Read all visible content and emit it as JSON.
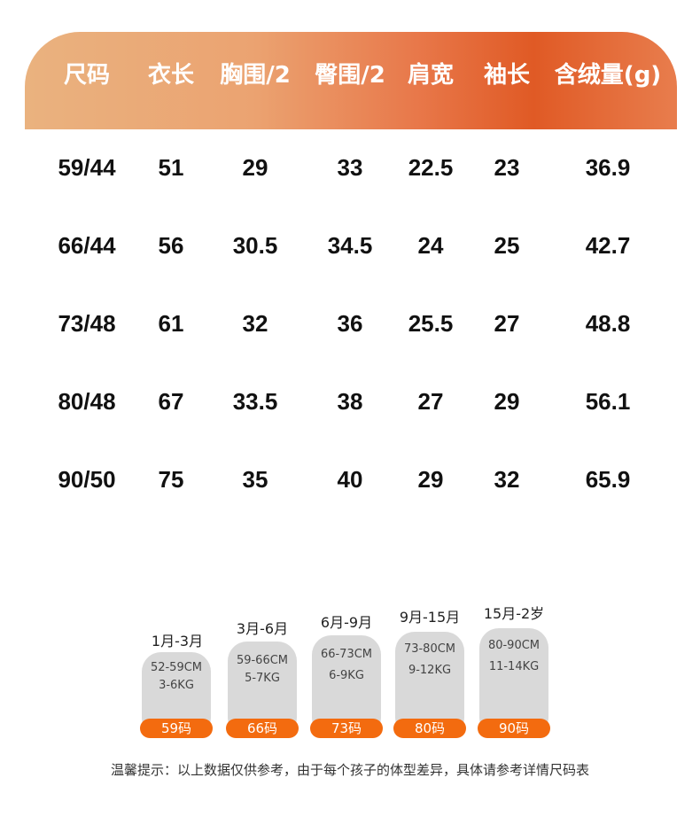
{
  "headers": [
    "尺码",
    "衣长",
    "胸围/2",
    "臀围/2",
    "肩宽",
    "袖长",
    "含绒量(g)"
  ],
  "rows": [
    [
      "59/44",
      "51",
      "29",
      "33",
      "22.5",
      "23",
      "36.9"
    ],
    [
      "66/44",
      "56",
      "30.5",
      "34.5",
      "24",
      "25",
      "42.7"
    ],
    [
      "73/48",
      "61",
      "32",
      "36",
      "25.5",
      "27",
      "48.8"
    ],
    [
      "80/48",
      "67",
      "33.5",
      "38",
      "27",
      "29",
      "56.1"
    ],
    [
      "90/50",
      "75",
      "35",
      "40",
      "29",
      "32",
      "65.9"
    ]
  ],
  "size_guide": [
    {
      "age": "1月-3月",
      "height": "52-59CM",
      "weight": "3-6KG",
      "size": "59码"
    },
    {
      "age": "3月-6月",
      "height": "59-66CM",
      "weight": "5-7KG",
      "size": "66码"
    },
    {
      "age": "6月-9月",
      "height": "66-73CM",
      "weight": "6-9KG",
      "size": "73码"
    },
    {
      "age": "9月-15月",
      "height": "73-80CM",
      "weight": "9-12KG",
      "size": "80码"
    },
    {
      "age": "15月-2岁",
      "height": "80-90CM",
      "weight": "11-14KG",
      "size": "90码"
    }
  ],
  "tip": "温馨提示：以上数据仅供参考，由于每个孩子的体型差异，具体请参考详情尺码表",
  "colors": {
    "header_gradient_start": "#eab27f",
    "header_gradient_end": "#e05a25",
    "badge": "#f36b0f",
    "pill": "#d9d9d9"
  }
}
